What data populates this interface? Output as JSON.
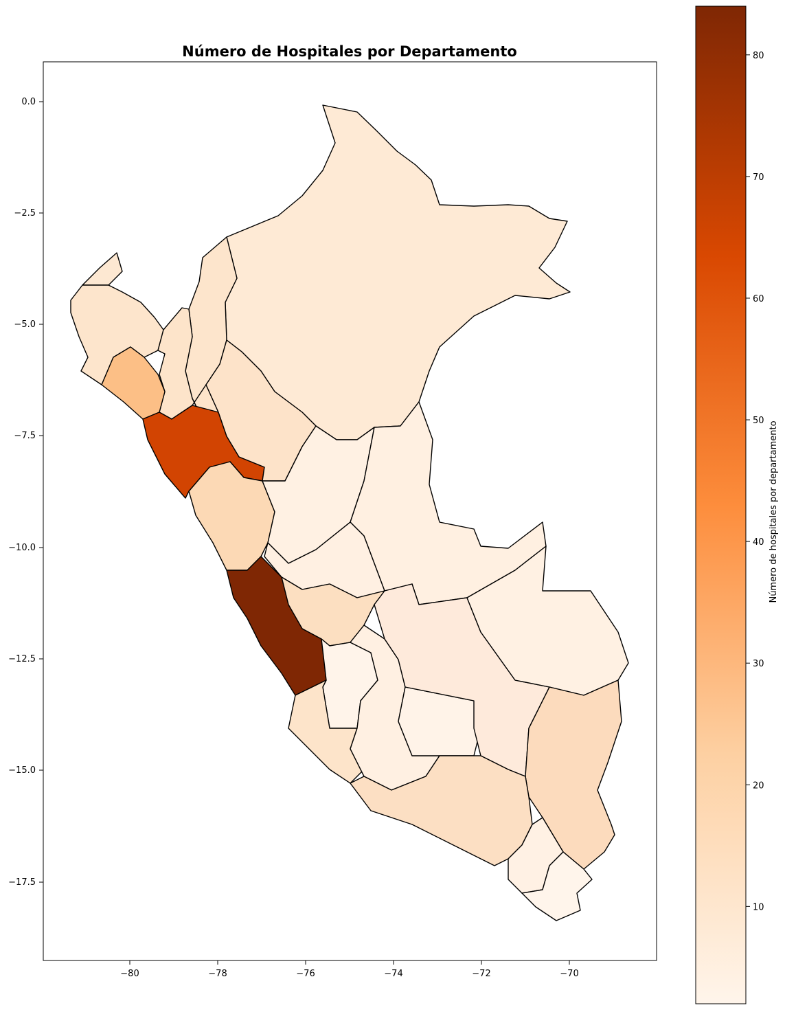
{
  "map": {
    "title": "Número de Hospitales por Departamento",
    "x_ticks": [
      "−80",
      "−78",
      "−76",
      "−74",
      "−72",
      "−70"
    ],
    "y_ticks": [
      "0.0",
      "−2.5",
      "−5.0",
      "−7.5",
      "−10.0",
      "−12.5",
      "−15.0",
      "−17.5"
    ],
    "colorbar": {
      "label": "Número de hospitales por departamento",
      "ticks": [
        "10",
        "20",
        "30",
        "40",
        "50",
        "60",
        "70",
        "80"
      ],
      "min": 2,
      "max": 84,
      "colors": [
        "#fff5eb",
        "#fdd0a2",
        "#fd8d3c",
        "#d94801",
        "#7f2704"
      ]
    }
  },
  "chart_data": {
    "type": "choropleth",
    "title": "Número de Hospitales por Departamento",
    "colorbar_label": "Número de hospitales por departamento",
    "xlim": [
      -82,
      -68
    ],
    "ylim": [
      -19.2,
      0.9
    ],
    "x_ticks": [
      -80,
      -78,
      -76,
      -74,
      -72,
      -70
    ],
    "y_ticks": [
      0.0,
      -2.5,
      -5.0,
      -7.5,
      -10.0,
      -12.5,
      -15.0,
      -17.5
    ],
    "colorbar_range": [
      2,
      84
    ],
    "colorbar_ticks": [
      10,
      20,
      30,
      40,
      50,
      60,
      70,
      80
    ]
  }
}
